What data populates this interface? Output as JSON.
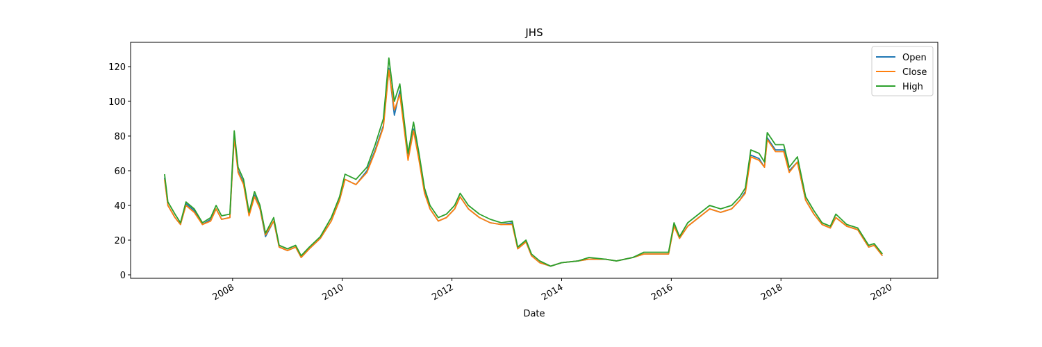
{
  "chart_data": {
    "type": "line",
    "title": "JHS",
    "x_label": "Date",
    "x": [
      2006.76,
      2006.82,
      2006.95,
      2007.05,
      2007.15,
      2007.3,
      2007.45,
      2007.6,
      2007.7,
      2007.8,
      2007.95,
      2008.0,
      2008.03,
      2008.1,
      2008.2,
      2008.3,
      2008.4,
      2008.5,
      2008.6,
      2008.75,
      2008.85,
      2009.0,
      2009.15,
      2009.25,
      2009.4,
      2009.6,
      2009.8,
      2009.95,
      2010.05,
      2010.25,
      2010.45,
      2010.6,
      2010.75,
      2010.85,
      2010.95,
      2011.05,
      2011.2,
      2011.3,
      2011.4,
      2011.5,
      2011.6,
      2011.75,
      2011.9,
      2012.05,
      2012.15,
      2012.3,
      2012.5,
      2012.7,
      2012.9,
      2013.1,
      2013.2,
      2013.35,
      2013.45,
      2013.6,
      2013.8,
      2014.0,
      2014.3,
      2014.5,
      2014.8,
      2015.0,
      2015.3,
      2015.5,
      2015.95,
      2016.05,
      2016.15,
      2016.3,
      2016.5,
      2016.7,
      2016.9,
      2017.1,
      2017.25,
      2017.35,
      2017.45,
      2017.6,
      2017.7,
      2017.75,
      2017.9,
      2018.05,
      2018.15,
      2018.3,
      2018.45,
      2018.6,
      2018.75,
      2018.9,
      2019.0,
      2019.2,
      2019.4,
      2019.5,
      2019.6,
      2019.7,
      2019.8,
      2019.85
    ],
    "series": [
      {
        "name": "Open",
        "color": "#1f77b4",
        "values": [
          56,
          40,
          33,
          29,
          41,
          37,
          29,
          32,
          38,
          32,
          33,
          63,
          80,
          60,
          53,
          35,
          46,
          38,
          22,
          31,
          16,
          14,
          16,
          10,
          15,
          21,
          31,
          43,
          55,
          52,
          60,
          72,
          86,
          119,
          92,
          106,
          67,
          84,
          67,
          48,
          38,
          31,
          33,
          38,
          45,
          38,
          33,
          30,
          29,
          30,
          15,
          19,
          11,
          7,
          5,
          7,
          8,
          9,
          9,
          8,
          10,
          12,
          12,
          29,
          21,
          28,
          33,
          38,
          36,
          38,
          43,
          48,
          69,
          67,
          62,
          79,
          72,
          72,
          60,
          65,
          43,
          35,
          29,
          27,
          33,
          28,
          26,
          21,
          16,
          17,
          13,
          11
        ]
      },
      {
        "name": "Close",
        "color": "#ff7f0e",
        "values": [
          55,
          40,
          33,
          29,
          40,
          36,
          29,
          31,
          38,
          32,
          33,
          62,
          79,
          59,
          52,
          34,
          45,
          38,
          23,
          31,
          16,
          14,
          16,
          10,
          15,
          21,
          31,
          43,
          55,
          52,
          59,
          71,
          85,
          118,
          95,
          104,
          66,
          83,
          66,
          47,
          38,
          31,
          33,
          38,
          45,
          38,
          33,
          30,
          29,
          29,
          15,
          19,
          11,
          7,
          5,
          7,
          8,
          9,
          9,
          8,
          10,
          12,
          12,
          28,
          21,
          28,
          33,
          38,
          36,
          38,
          43,
          47,
          68,
          66,
          62,
          78,
          71,
          71,
          59,
          65,
          43,
          35,
          29,
          27,
          33,
          28,
          26,
          21,
          16,
          17,
          13,
          11
        ]
      },
      {
        "name": "High",
        "color": "#2ca02c",
        "values": [
          58,
          42,
          35,
          30,
          42,
          38,
          30,
          33,
          40,
          34,
          35,
          65,
          83,
          62,
          55,
          36,
          48,
          40,
          24,
          33,
          17,
          15,
          17,
          11,
          16,
          22,
          33,
          45,
          58,
          55,
          62,
          75,
          90,
          125,
          100,
          110,
          70,
          88,
          70,
          50,
          40,
          33,
          35,
          40,
          47,
          40,
          35,
          32,
          30,
          31,
          16,
          20,
          12,
          8,
          5,
          7,
          8,
          10,
          9,
          8,
          10,
          13,
          13,
          30,
          22,
          30,
          35,
          40,
          38,
          40,
          45,
          50,
          72,
          70,
          65,
          82,
          75,
          75,
          62,
          68,
          45,
          37,
          30,
          28,
          35,
          29,
          27,
          22,
          17,
          18,
          14,
          12
        ]
      }
    ],
    "xlim": [
      2006.14,
      2020.86
    ],
    "xticks": [
      2008,
      2010,
      2012,
      2014,
      2016,
      2018,
      2020
    ],
    "ylim": [
      -2,
      134
    ],
    "yticks": [
      0,
      20,
      40,
      60,
      80,
      100,
      120
    ],
    "legend": "upper right"
  }
}
